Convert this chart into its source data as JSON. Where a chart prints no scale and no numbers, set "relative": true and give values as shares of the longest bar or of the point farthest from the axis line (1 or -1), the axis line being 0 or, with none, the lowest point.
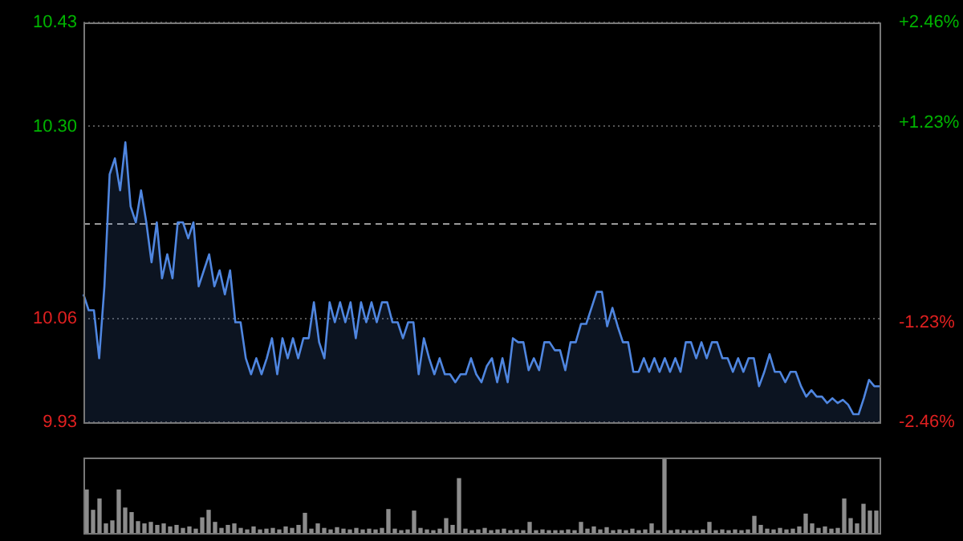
{
  "chart_data": [
    {
      "type": "area",
      "color": "#4f86e0",
      "categories": [
        null,
        null,
        null,
        null,
        null,
        null,
        null,
        null,
        null,
        null,
        null,
        null,
        null,
        null,
        null,
        null,
        null,
        null,
        null,
        null,
        null,
        null,
        null,
        null,
        null,
        null,
        null,
        null,
        null,
        null,
        null,
        null,
        null,
        null,
        null,
        null,
        null,
        null,
        null,
        null,
        null,
        null,
        null,
        null,
        null,
        null,
        null,
        null,
        null,
        null,
        null,
        null,
        null,
        null,
        null,
        null,
        null,
        null,
        null,
        null,
        null,
        null,
        null,
        null,
        null,
        null,
        null,
        null,
        null,
        null,
        null,
        null,
        null,
        null,
        null,
        null,
        null,
        null,
        null,
        null,
        null,
        null,
        null,
        null,
        null,
        null,
        null,
        null,
        null,
        null,
        null,
        null,
        null,
        null,
        null,
        null,
        null,
        null,
        null,
        null,
        null,
        null,
        null,
        null,
        null,
        null,
        null,
        null,
        null,
        null,
        null,
        null,
        null,
        null,
        null,
        null,
        null,
        null,
        null,
        null,
        null,
        null,
        null,
        null,
        null,
        null,
        null,
        null,
        null,
        null,
        null,
        null,
        null,
        null,
        null,
        null,
        null,
        null,
        null,
        null,
        null,
        null,
        null,
        null,
        null,
        null,
        null,
        null,
        null,
        null,
        null,
        null,
        null
      ],
      "values": [
        10.09,
        10.07,
        10.07,
        10.01,
        10.1,
        10.24,
        10.26,
        10.22,
        10.28,
        10.2,
        10.18,
        10.22,
        10.18,
        10.13,
        10.18,
        10.11,
        10.14,
        10.11,
        10.18,
        10.18,
        10.16,
        10.18,
        10.1,
        10.12,
        10.14,
        10.1,
        10.12,
        10.09,
        10.12,
        10.055,
        10.055,
        10.01,
        9.99,
        10.01,
        9.99,
        10.01,
        10.035,
        9.99,
        10.035,
        10.01,
        10.035,
        10.01,
        10.035,
        10.035,
        10.08,
        10.03,
        10.01,
        10.08,
        10.055,
        10.08,
        10.055,
        10.08,
        10.035,
        10.08,
        10.055,
        10.08,
        10.055,
        10.08,
        10.08,
        10.055,
        10.055,
        10.035,
        10.055,
        10.055,
        9.99,
        10.035,
        10.01,
        9.99,
        10.01,
        9.99,
        9.99,
        9.98,
        9.99,
        9.99,
        10.01,
        9.99,
        9.98,
        10,
        10.01,
        9.98,
        10.01,
        9.98,
        10.035,
        10.03,
        10.03,
        9.995,
        10.01,
        9.995,
        10.03,
        10.03,
        10.02,
        10.02,
        9.995,
        10.03,
        10.03,
        10.053,
        10.053,
        10.073,
        10.093,
        10.093,
        10.05,
        10.073,
        10.05,
        10.03,
        10.03,
        9.993,
        9.993,
        10.01,
        9.993,
        10.01,
        9.993,
        10.01,
        9.993,
        10.01,
        9.993,
        10.03,
        10.03,
        10.01,
        10.03,
        10.01,
        10.03,
        10.03,
        10.01,
        10.01,
        9.993,
        10.01,
        9.993,
        10.01,
        10.01,
        9.975,
        9.993,
        10.015,
        9.993,
        9.993,
        9.98,
        9.993,
        9.993,
        9.975,
        9.962,
        9.97,
        9.962,
        9.962,
        9.954,
        9.96,
        9.954,
        9.958,
        9.952,
        9.94,
        9.94,
        9.96,
        9.983,
        9.975,
        9.975
      ],
      "ylim": [
        9.93,
        10.43
      ],
      "yticks": [
        9.93,
        10.06,
        {
          "value": 10.3,
          "label": "10.30"
        },
        10.43
      ],
      "y2lim": [
        -2.46,
        2.46
      ],
      "y2ticks": [
        {
          "value": -2.46,
          "label": "-2.46%"
        },
        {
          "value": -1.23,
          "label": "-1.23%"
        },
        {
          "value": 1.23,
          "label": "+1.23%"
        },
        {
          "value": 2.46,
          "label": "+2.46%"
        }
      ],
      "ref_lines": [
        {
          "axis": "y",
          "value": 10.18,
          "line_style": "dashed"
        }
      ],
      "grid": "y",
      "legend": false,
      "tick_labels": "y",
      "marker": "none"
    },
    {
      "type": "bar",
      "color": "#8c8c8c",
      "relative": true,
      "grid": false,
      "legend": false,
      "tick_labels": false,
      "categories": [
        null,
        null,
        null,
        null,
        null,
        null,
        null,
        null,
        null,
        null,
        null,
        null,
        null,
        null,
        null,
        null,
        null,
        null,
        null,
        null,
        null,
        null,
        null,
        null,
        null,
        null,
        null,
        null,
        null,
        null,
        null,
        null,
        null,
        null,
        null,
        null,
        null,
        null,
        null,
        null,
        null,
        null,
        null,
        null,
        null,
        null,
        null,
        null,
        null,
        null,
        null,
        null,
        null,
        null,
        null,
        null,
        null,
        null,
        null,
        null,
        null,
        null,
        null,
        null,
        null,
        null,
        null,
        null,
        null,
        null,
        null,
        null,
        null,
        null,
        null,
        null,
        null,
        null,
        null,
        null,
        null,
        null,
        null,
        null,
        null,
        null,
        null,
        null,
        null,
        null,
        null,
        null,
        null,
        null,
        null,
        null,
        null,
        null,
        null,
        null,
        null,
        null,
        null,
        null,
        null,
        null,
        null,
        null,
        null,
        null,
        null,
        null,
        null,
        null,
        null,
        null,
        null,
        null,
        null,
        null,
        null,
        null,
        null,
        null
      ],
      "values": [
        0.57,
        0.3,
        0.45,
        0.12,
        0.16,
        0.57,
        0.33,
        0.27,
        0.15,
        0.12,
        0.14,
        0.1,
        0.12,
        0.08,
        0.1,
        0.06,
        0.08,
        0.05,
        0.2,
        0.3,
        0.14,
        0.06,
        0.1,
        0.12,
        0.06,
        0.04,
        0.08,
        0.04,
        0.05,
        0.06,
        0.04,
        0.08,
        0.06,
        0.1,
        0.26,
        0.05,
        0.12,
        0.06,
        0.04,
        0.07,
        0.05,
        0.04,
        0.06,
        0.04,
        0.05,
        0.04,
        0.06,
        0.31,
        0.05,
        0.03,
        0.04,
        0.29,
        0.06,
        0.04,
        0.03,
        0.05,
        0.19,
        0.1,
        0.72,
        0.05,
        0.03,
        0.04,
        0.06,
        0.03,
        0.04,
        0.05,
        0.03,
        0.04,
        0.03,
        0.14,
        0.03,
        0.04,
        0.03,
        0.03,
        0.03,
        0.04,
        0.03,
        0.14,
        0.05,
        0.08,
        0.04,
        0.07,
        0.03,
        0.04,
        0.03,
        0.05,
        0.03,
        0.04,
        0.12,
        0.03,
        1,
        0.03,
        0.04,
        0.03,
        0.03,
        0.03,
        0.04,
        0.14,
        0.03,
        0.04,
        0.03,
        0.04,
        0.03,
        0.04,
        0.22,
        0.1,
        0.05,
        0.04,
        0.06,
        0.04,
        0.05,
        0.08,
        0.25,
        0.12,
        0.06,
        0.08,
        0.05,
        0.06,
        0.45,
        0.19,
        0.12,
        0.38,
        0.29,
        0.29
      ]
    }
  ]
}
